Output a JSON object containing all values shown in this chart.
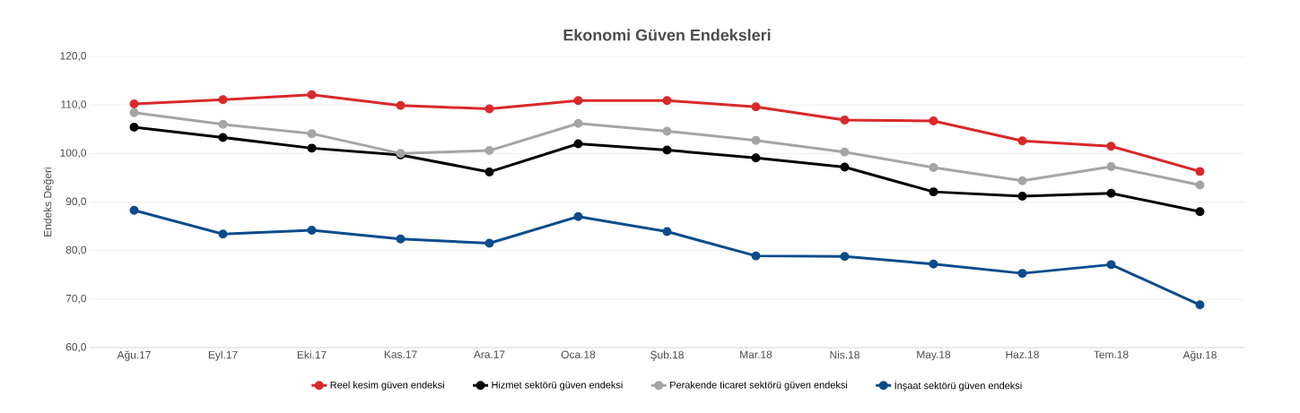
{
  "chart_data": {
    "type": "line",
    "title": "Ekonomi  Güven Endeksleri",
    "ylabel": "Endeks Değeri",
    "categories": [
      "Ağu.17",
      "Eyl.17",
      "Eki.17",
      "Kas.17",
      "Ara.17",
      "Oca.18",
      "Şub.18",
      "Mar.18",
      "Nis.18",
      "May.18",
      "Haz.18",
      "Tem.18",
      "Ağu.18"
    ],
    "series": [
      {
        "name": "Reel kesim güven endeksi",
        "color": "#d9292b",
        "values": [
          110.2,
          111.1,
          112.1,
          109.9,
          109.2,
          110.9,
          110.9,
          109.6,
          106.9,
          106.7,
          102.6,
          101.5,
          96.3
        ]
      },
      {
        "name": "Hizmet sektörü güven endeksi",
        "color": "#000000",
        "values": [
          105.4,
          103.3,
          101.1,
          99.7,
          96.2,
          102.0,
          100.7,
          99.1,
          97.2,
          92.1,
          91.2,
          91.8,
          88.0
        ]
      },
      {
        "name": "Perakende ticaret sektörü  güven endeksi",
        "color": "#a5a5a5",
        "values": [
          108.4,
          106.0,
          104.1,
          100.0,
          100.6,
          106.2,
          104.6,
          102.7,
          100.3,
          97.1,
          94.4,
          97.3,
          93.5
        ]
      },
      {
        "name": "İnşaat sektörü  güven endeksi",
        "color": "#0a4c8c",
        "values": [
          88.3,
          83.4,
          84.2,
          82.4,
          81.5,
          87.0,
          83.9,
          78.9,
          78.8,
          77.2,
          75.3,
          77.1,
          68.8
        ]
      }
    ],
    "ylim": [
      60,
      120
    ],
    "yticks": [
      {
        "value": 60,
        "label": "60,0"
      },
      {
        "value": 70,
        "label": "70,0"
      },
      {
        "value": 80,
        "label": "80,0"
      },
      {
        "value": 90,
        "label": "90,0"
      },
      {
        "value": 100,
        "label": "100,0"
      },
      {
        "value": 110,
        "label": "110,0"
      },
      {
        "value": 120,
        "label": "120,0"
      }
    ],
    "grid": "y",
    "legend": "bottom",
    "marker": "circle",
    "line_style": "solid"
  }
}
